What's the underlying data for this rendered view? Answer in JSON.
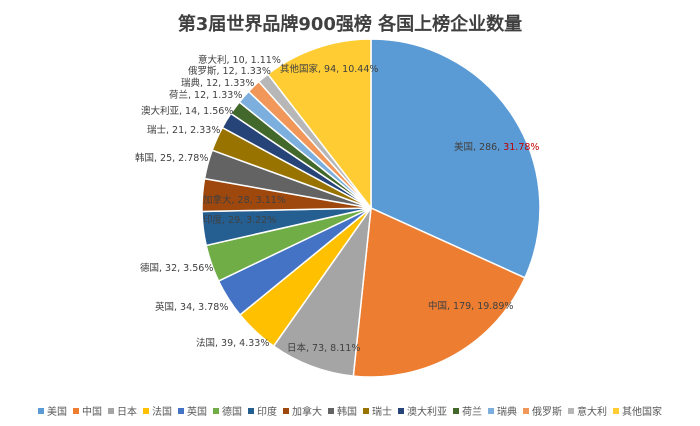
{
  "chart_data": {
    "type": "pie",
    "title": "第3届世界品牌900强榜 各国上榜企业数量",
    "slices": [
      {
        "label": "美国",
        "value": 286,
        "percent": "31.78%",
        "color": "#5b9bd5",
        "highlight": true
      },
      {
        "label": "中国",
        "value": 179,
        "percent": "19.89%",
        "color": "#ed7d31"
      },
      {
        "label": "日本",
        "value": 73,
        "percent": "8.11%",
        "color": "#a5a5a5"
      },
      {
        "label": "法国",
        "value": 39,
        "percent": "4.33%",
        "color": "#ffc000"
      },
      {
        "label": "英国",
        "value": 34,
        "percent": "3.78%",
        "color": "#4472c4"
      },
      {
        "label": "德国",
        "value": 32,
        "percent": "3.56%",
        "color": "#70ad47"
      },
      {
        "label": "印度",
        "value": 29,
        "percent": "3.22%",
        "color": "#255e91"
      },
      {
        "label": "加拿大",
        "value": 28,
        "percent": "3.11%",
        "color": "#9e480e"
      },
      {
        "label": "韩国",
        "value": 25,
        "percent": "2.78%",
        "color": "#636363"
      },
      {
        "label": "瑞士",
        "value": 21,
        "percent": "2.33%",
        "color": "#997300"
      },
      {
        "label": "澳大利亚",
        "value": 14,
        "percent": "1.56%",
        "color": "#264478"
      },
      {
        "label": "荷兰",
        "value": 12,
        "percent": "1.33%",
        "color": "#43682b"
      },
      {
        "label": "瑞典",
        "value": 12,
        "percent": "1.33%",
        "color": "#7cafdd"
      },
      {
        "label": "俄罗斯",
        "value": 12,
        "percent": "1.33%",
        "color": "#f1975a"
      },
      {
        "label": "意大利",
        "value": 10,
        "percent": "1.11%",
        "color": "#b7b7b7"
      },
      {
        "label": "其他国家",
        "value": 94,
        "percent": "10.44%",
        "color": "#ffcd33"
      }
    ],
    "legend_position": "bottom"
  }
}
